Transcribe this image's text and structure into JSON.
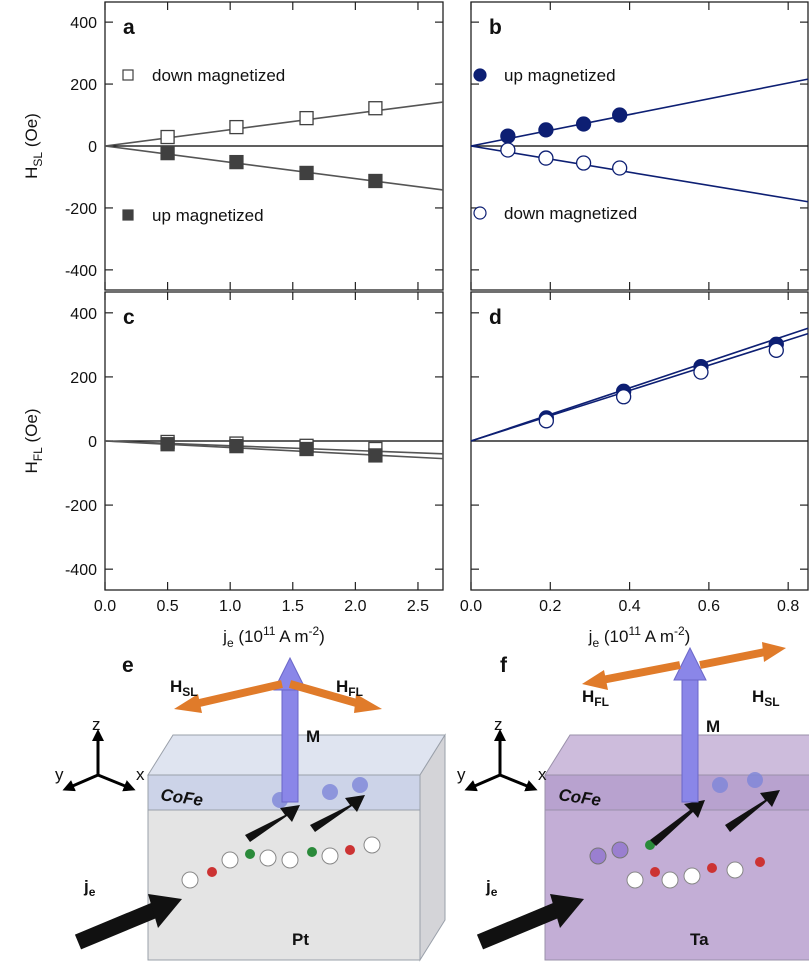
{
  "chart_data": [
    {
      "type": "scatter",
      "panel_label": "a",
      "y_label": [
        {
          "text": "H"
        },
        {
          "text": "SL",
          "style": "sub"
        },
        {
          "text": " (Oe)"
        }
      ],
      "xlim": [
        0,
        2.7
      ],
      "ylim": [
        -465,
        465
      ],
      "yticks": [
        -400,
        -200,
        0,
        200,
        400
      ],
      "series": [
        {
          "name": "down magnetized",
          "color": "#404040",
          "marker": "square-open",
          "x": [
            0.5,
            1.05,
            1.61,
            2.16
          ],
          "values": [
            29,
            61,
            90,
            122
          ]
        },
        {
          "name": "up magnetized",
          "color": "#404040",
          "marker": "square",
          "x": [
            0.5,
            1.05,
            1.61,
            2.16
          ],
          "values": [
            -23,
            -52,
            -87,
            -113
          ]
        }
      ],
      "fits": [
        {
          "color": "#555555",
          "x": [
            0,
            2.7
          ],
          "values": [
            0,
            142
          ]
        },
        {
          "color": "#555555",
          "x": [
            0,
            2.7
          ],
          "values": [
            0,
            -142
          ]
        }
      ]
    },
    {
      "type": "scatter",
      "panel_label": "b",
      "xlim": [
        0,
        0.85
      ],
      "ylim": [
        -465,
        465
      ],
      "series": [
        {
          "name": "up magnetized",
          "color": "#0d1f73",
          "marker": "circle",
          "x": [
            0.093,
            0.189,
            0.284,
            0.375
          ],
          "values": [
            32,
            52,
            71,
            100
          ]
        },
        {
          "name": "down magnetized",
          "color": "#0d1f73",
          "marker": "circle-open",
          "x": [
            0.093,
            0.189,
            0.284,
            0.375
          ],
          "values": [
            -13,
            -39,
            -55,
            -71
          ]
        }
      ],
      "fits": [
        {
          "color": "#0d1f73",
          "x": [
            0,
            0.85
          ],
          "values": [
            0,
            216
          ]
        },
        {
          "color": "#0d1f73",
          "x": [
            0,
            0.85
          ],
          "values": [
            0,
            -180
          ]
        }
      ]
    },
    {
      "type": "scatter",
      "panel_label": "c",
      "y_label": [
        {
          "text": "H"
        },
        {
          "text": "FL",
          "style": "sub"
        },
        {
          "text": " (Oe)"
        }
      ],
      "x_label": [
        {
          "text": "j"
        },
        {
          "text": "e",
          "style": "sub"
        },
        {
          "text": " (10"
        },
        {
          "text": "11",
          "style": "sup"
        },
        {
          "text": " A m"
        },
        {
          "text": "-2",
          "style": "sup"
        },
        {
          "text": ")"
        }
      ],
      "xlim": [
        0,
        2.7
      ],
      "ylim": [
        -465,
        465
      ],
      "yticks": [
        -400,
        -200,
        0,
        200,
        400
      ],
      "xticks": [
        {
          "value": 0,
          "label": "0.0"
        },
        0.5,
        {
          "value": 1,
          "label": "1.0"
        },
        1.5,
        {
          "value": 2,
          "label": "2.0"
        },
        2.5
      ],
      "series": [
        {
          "color": "#404040",
          "marker": "square-open",
          "x": [
            0.5,
            1.05,
            1.61,
            2.16
          ],
          "values": [
            -3,
            -8,
            -15,
            -25
          ]
        },
        {
          "color": "#404040",
          "marker": "square",
          "x": [
            0.5,
            1.05,
            1.61,
            2.16
          ],
          "values": [
            -10,
            -16,
            -25,
            -45
          ]
        }
      ],
      "fits": [
        {
          "color": "#555555",
          "x": [
            0,
            2.7
          ],
          "values": [
            0,
            -40
          ]
        },
        {
          "color": "#555555",
          "x": [
            0,
            2.7
          ],
          "values": [
            0,
            -55
          ]
        }
      ]
    },
    {
      "type": "scatter",
      "panel_label": "d",
      "x_label": [
        {
          "text": "j"
        },
        {
          "text": "e",
          "style": "sub"
        },
        {
          "text": " (10"
        },
        {
          "text": "11",
          "style": "sup"
        },
        {
          "text": " A m"
        },
        {
          "text": "-2",
          "style": "sup"
        },
        {
          "text": ")"
        }
      ],
      "xlim": [
        0,
        0.85
      ],
      "ylim": [
        -465,
        465
      ],
      "xticks": [
        {
          "value": 0,
          "label": "0.0"
        },
        0.2,
        0.4,
        0.6,
        0.8
      ],
      "series": [
        {
          "color": "#0d1f73",
          "marker": "circle",
          "x": [
            0.19,
            0.385,
            0.58,
            0.77
          ],
          "values": [
            72,
            155,
            232,
            302
          ]
        },
        {
          "color": "#0d1f73",
          "marker": "circle-open",
          "x": [
            0.19,
            0.385,
            0.58,
            0.77
          ],
          "values": [
            63,
            138,
            215,
            283
          ]
        }
      ],
      "fits": [
        {
          "color": "#0d1f73",
          "x": [
            0,
            0.85
          ],
          "values": [
            0,
            352
          ]
        },
        {
          "color": "#0d1f73",
          "x": [
            0,
            0.85
          ],
          "values": [
            0,
            335
          ]
        }
      ]
    }
  ],
  "illustrations": [
    {
      "panel_label": "e",
      "field_left": {
        "main": "H",
        "sub": "SL"
      },
      "field_right": {
        "main": "H",
        "sub": "FL"
      },
      "moment": "M",
      "layer_top": "CoFe",
      "layer_bottom": "Pt",
      "current": {
        "main": "j",
        "sub": "e"
      },
      "axes": {
        "z": "z",
        "y": "y",
        "x": "x"
      }
    },
    {
      "panel_label": "f",
      "field_left": {
        "main": "H",
        "sub": "FL"
      },
      "field_right": {
        "main": "H",
        "sub": "SL"
      },
      "moment": "M",
      "layer_top": "CoFe",
      "layer_bottom": "Ta",
      "current": {
        "main": "j",
        "sub": "e"
      },
      "axes": {
        "z": "z",
        "y": "y",
        "x": "x"
      }
    }
  ]
}
